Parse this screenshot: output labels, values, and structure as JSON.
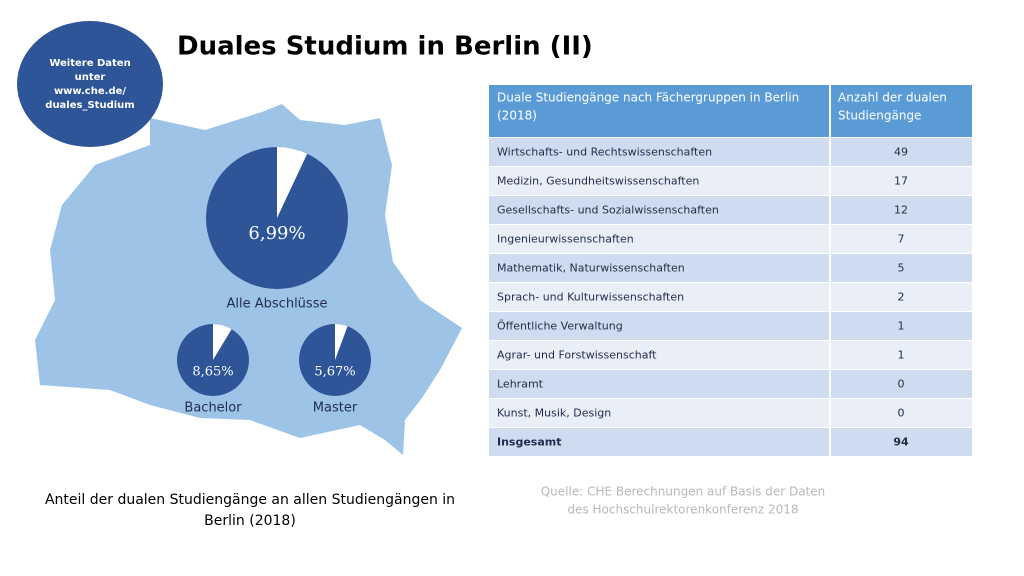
{
  "header": {
    "title": "Duales Studium in Berlin (II)"
  },
  "info_bubble": {
    "lines": [
      "Weitere Daten",
      "unter",
      "www.che.de/",
      "duales_Studium"
    ]
  },
  "chart_data": {
    "type": "pie",
    "caption": [
      "Anteil der dualen Studiengänge an allen Studiengängen in",
      "Berlin (2018)"
    ],
    "categories": [
      "Alle Abschlüsse",
      "Bachelor",
      "Master"
    ],
    "values": [
      6.99,
      8.65,
      5.67
    ],
    "value_labels": [
      "6,99%",
      "8,65%",
      "5,67%"
    ],
    "color": "#2e5597"
  },
  "table": {
    "header": [
      [
        "Duale Studiengänge nach Fächergruppen in Berlin",
        "(2018)"
      ],
      [
        "Anzahl der dualen",
        "Studiengänge"
      ]
    ],
    "rows": [
      [
        "Wirtschafts- und Rechtswissenschaften",
        "49"
      ],
      [
        "Medizin, Gesundheitswissenschaften",
        "17"
      ],
      [
        "Gesellschafts- und Sozialwissenschaften",
        "12"
      ],
      [
        "Ingenieurwissenschaften",
        "7"
      ],
      [
        "Mathematik, Naturwissenschaften",
        "5"
      ],
      [
        "Sprach- und Kulturwissenschaften",
        "2"
      ],
      [
        "Öffentliche Verwaltung",
        "1"
      ],
      [
        "Agrar- und Forstwissenschaft",
        "1"
      ],
      [
        "Lehramt",
        "0"
      ],
      [
        "Kunst, Musik, Design",
        "0"
      ],
      [
        "Insgesamt",
        "94"
      ]
    ]
  },
  "source": [
    "Quelle: CHE Berechnungen auf Basis der Daten",
    "des Hochschulrektorenkonferenz 2018"
  ]
}
